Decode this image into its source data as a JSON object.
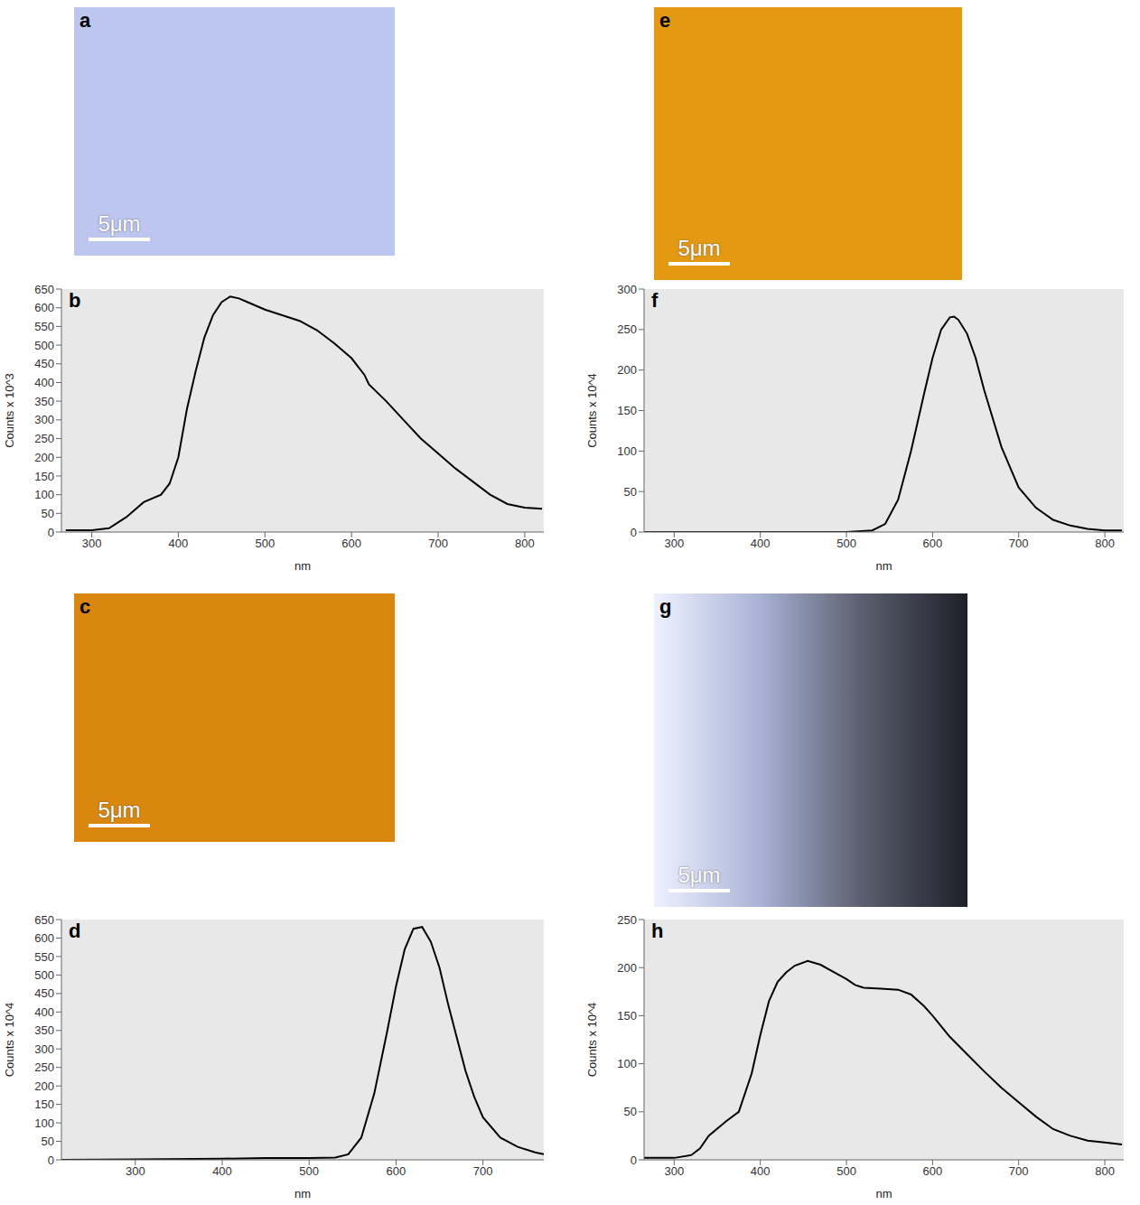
{
  "images": [
    {
      "label": "a",
      "scale_bar": "5μm",
      "color": "#bcc6ee"
    },
    {
      "label": "c",
      "scale_bar": "5μm",
      "color": "#d9870f"
    },
    {
      "label": "e",
      "scale_bar": "5μm",
      "color": "#e39a12"
    },
    {
      "label": "g",
      "scale_bar": "5μm",
      "colors": [
        "#eef2ff",
        "#aab3d6",
        "#5a5e6e",
        "#1e2028"
      ]
    }
  ],
  "chart_data": [
    {
      "type": "line",
      "title": "b",
      "xlabel": "nm",
      "ylabel": "Counts x 10^3",
      "color": "#000000",
      "grid": false,
      "xlim": [
        265,
        822
      ],
      "xticks": [
        300,
        400,
        500,
        600,
        700,
        800
      ],
      "ylim": [
        0,
        650
      ],
      "yticks": [
        0,
        50,
        100,
        150,
        200,
        250,
        300,
        350,
        400,
        450,
        500,
        550,
        600,
        650
      ],
      "x": [
        270,
        300,
        320,
        340,
        360,
        380,
        390,
        400,
        410,
        420,
        430,
        440,
        450,
        460,
        470,
        480,
        500,
        520,
        540,
        560,
        580,
        600,
        615,
        620,
        640,
        660,
        680,
        700,
        720,
        740,
        760,
        780,
        800,
        820
      ],
      "values": [
        5,
        5,
        10,
        40,
        80,
        100,
        130,
        200,
        330,
        430,
        520,
        580,
        615,
        630,
        625,
        615,
        595,
        580,
        565,
        540,
        505,
        465,
        420,
        395,
        350,
        300,
        250,
        210,
        170,
        135,
        100,
        75,
        65,
        62
      ]
    },
    {
      "type": "line",
      "title": "d",
      "xlabel": "nm",
      "ylabel": "Counts x 10^4",
      "color": "#000000",
      "grid": false,
      "xlim": [
        215,
        770
      ],
      "xticks": [
        300,
        400,
        500,
        600,
        700
      ],
      "ylim": [
        0,
        650
      ],
      "yticks": [
        0,
        50,
        100,
        150,
        200,
        250,
        300,
        350,
        400,
        450,
        500,
        550,
        600,
        650
      ],
      "x": [
        215,
        300,
        400,
        450,
        500,
        530,
        545,
        560,
        575,
        590,
        600,
        610,
        620,
        630,
        640,
        650,
        660,
        670,
        680,
        690,
        700,
        720,
        740,
        760,
        770
      ],
      "values": [
        0,
        1,
        3,
        5,
        5,
        6,
        15,
        60,
        180,
        350,
        470,
        570,
        625,
        630,
        590,
        520,
        420,
        330,
        240,
        170,
        115,
        60,
        35,
        20,
        15
      ]
    },
    {
      "type": "line",
      "title": "f",
      "xlabel": "nm",
      "ylabel": "Counts x 10^4",
      "color": "#000000",
      "grid": false,
      "xlim": [
        265,
        822
      ],
      "xticks": [
        300,
        400,
        500,
        600,
        700,
        800
      ],
      "ylim": [
        0,
        300
      ],
      "yticks": [
        0,
        50,
        100,
        150,
        200,
        250,
        300
      ],
      "x": [
        265,
        500,
        530,
        545,
        560,
        575,
        590,
        600,
        610,
        620,
        625,
        630,
        640,
        650,
        660,
        670,
        680,
        690,
        700,
        720,
        740,
        760,
        780,
        800,
        820
      ],
      "values": [
        0,
        0,
        2,
        10,
        40,
        100,
        170,
        215,
        250,
        265,
        266,
        262,
        245,
        215,
        175,
        140,
        105,
        80,
        55,
        30,
        15,
        8,
        4,
        2,
        2
      ]
    },
    {
      "type": "line",
      "title": "h",
      "xlabel": "nm",
      "ylabel": "Counts x 10^4",
      "color": "#000000",
      "grid": false,
      "xlim": [
        265,
        822
      ],
      "xticks": [
        300,
        400,
        500,
        600,
        700,
        800
      ],
      "ylim": [
        0,
        250
      ],
      "yticks": [
        0,
        50,
        100,
        150,
        200,
        250
      ],
      "x": [
        265,
        300,
        320,
        330,
        340,
        360,
        375,
        390,
        400,
        410,
        420,
        430,
        440,
        455,
        470,
        480,
        500,
        510,
        520,
        540,
        560,
        575,
        590,
        600,
        620,
        640,
        660,
        680,
        700,
        720,
        740,
        760,
        780,
        800,
        820
      ],
      "values": [
        2,
        2,
        5,
        12,
        25,
        40,
        50,
        90,
        130,
        165,
        185,
        195,
        202,
        207,
        203,
        198,
        188,
        182,
        179,
        178,
        177,
        172,
        160,
        150,
        128,
        110,
        92,
        75,
        60,
        45,
        32,
        25,
        20,
        18,
        16
      ]
    }
  ]
}
